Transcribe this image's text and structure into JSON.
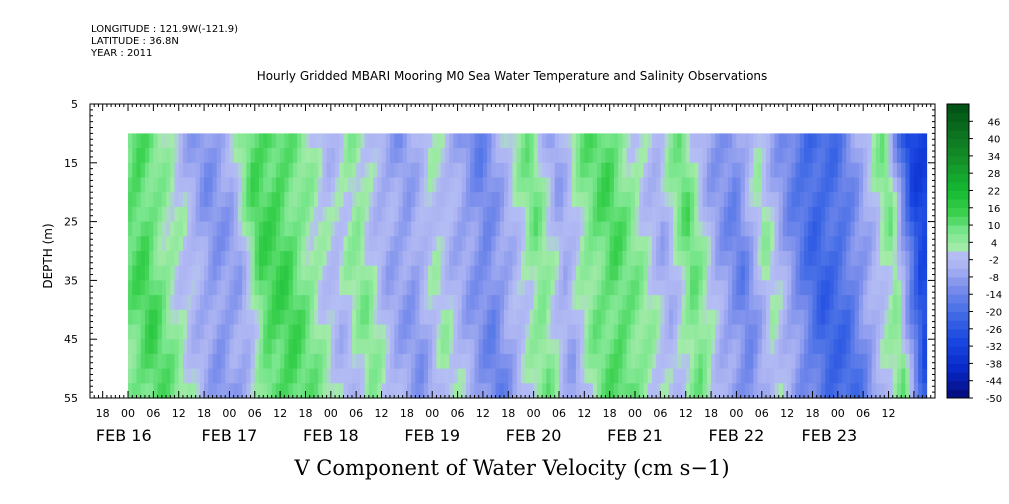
{
  "header": {
    "longitude": "LONGITUDE : 121.9W(-121.9)",
    "latitude": "LATITUDE : 36.8N",
    "year": "YEAR : 2011"
  },
  "chart_data": {
    "type": "heatmap",
    "title": "Hourly Gridded MBARI Mooring M0 Sea Water Temperature and Salinity Observations",
    "xlabel": "",
    "ylabel": "DEPTH (m)",
    "variable_label": "V Component of Water Velocity (cm s−1)",
    "y_axis": {
      "range": [
        5,
        55
      ],
      "inverted": true,
      "ticks": [
        5,
        15,
        25,
        35,
        45,
        55
      ],
      "data_top": 10
    },
    "x_axis": {
      "start": "FEB 15 15:00",
      "end": "FEB 23 14:00",
      "data_start": "FEB 16 00:00",
      "hour_ticks": [
        "18",
        "00",
        "06",
        "12",
        "18",
        "00",
        "06",
        "12",
        "18",
        "00",
        "06",
        "12",
        "18",
        "00",
        "06",
        "12",
        "18",
        "00",
        "06",
        "12",
        "18",
        "00",
        "06",
        "12",
        "18",
        "00",
        "06",
        "12",
        "18",
        "00",
        "06",
        "12"
      ],
      "date_labels": [
        "FEB 16",
        "FEB 17",
        "FEB 18",
        "FEB 19",
        "FEB 20",
        "FEB 21",
        "FEB 22",
        "FEB 23"
      ]
    },
    "colorbar": {
      "labels": [
        "46",
        "40",
        "34",
        "28",
        "22",
        "16",
        "10",
        "4",
        "-2",
        "-8",
        "-14",
        "-20",
        "-26",
        "-32",
        "-38",
        "-44",
        "-50"
      ],
      "range": [
        -50,
        52
      ]
    },
    "velocity_hours": [
      -1,
      4,
      9,
      15,
      20,
      26,
      31,
      37,
      43,
      49,
      55,
      61,
      67,
      73,
      79,
      85,
      91,
      97,
      103,
      109,
      115,
      121,
      127,
      133,
      139,
      145,
      151,
      157,
      163,
      169,
      175,
      181,
      187
    ],
    "velocity_values": [
      8,
      13,
      5,
      -3,
      -10,
      -6,
      12,
      13,
      5,
      -3,
      6,
      -5,
      -9,
      2,
      -6,
      -14,
      -3,
      8,
      -7,
      7,
      12,
      4,
      -5,
      10,
      -6,
      -14,
      3,
      -11,
      -22,
      -19,
      -6,
      7,
      -30
    ],
    "colors": {
      "deep_blue": "#0a2fd6",
      "lavender": "#a9b2f2",
      "light_green": "#8ee89a",
      "green": "#22cc3c"
    }
  }
}
